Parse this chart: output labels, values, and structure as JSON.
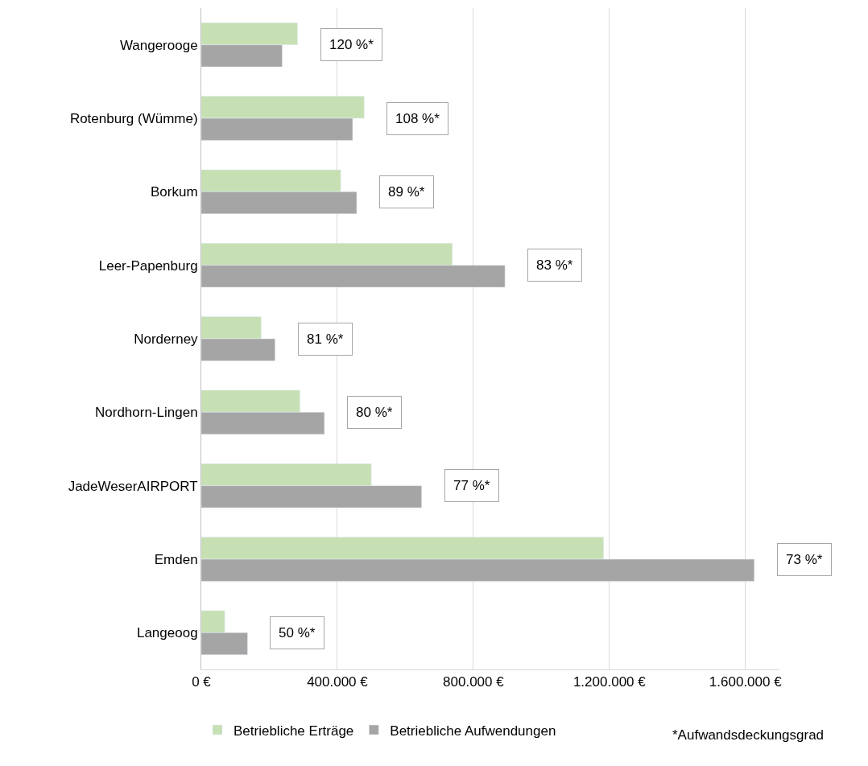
{
  "chart_data": {
    "type": "bar",
    "orientation": "horizontal",
    "categories": [
      "Wangerooge",
      "Rotenburg (Wümme)",
      "Borkum",
      "Leer-Papenburg",
      "Norderney",
      "Nordhorn-Lingen",
      "JadeWeserAIRPORT",
      "Emden",
      "Langeoog"
    ],
    "series": [
      {
        "name": "Betriebliche Erträge",
        "color": "#c6e0b4",
        "values": [
          283000,
          479000,
          410000,
          738000,
          176000,
          290000,
          500000,
          1183000,
          69000
        ]
      },
      {
        "name": "Betriebliche Aufwendungen",
        "color": "#a5a5a5",
        "values": [
          238000,
          445000,
          457000,
          893000,
          217000,
          362000,
          648000,
          1626000,
          136000
        ]
      }
    ],
    "xlim": [
      0,
      1700000
    ],
    "xticks": [
      {
        "value": 0,
        "label": "0 €"
      },
      {
        "value": 400000,
        "label": "400.000 €"
      },
      {
        "value": 800000,
        "label": "800.000 €"
      },
      {
        "value": 1200000,
        "label": "1.200.000 €"
      },
      {
        "value": 1600000,
        "label": "1.600.000 €"
      }
    ],
    "grid": "x",
    "legend": "bottom",
    "annotations": [
      "120 %*",
      "108 %*",
      "89 %*",
      "83 %*",
      "81 %*",
      "80 %*",
      "77 %*",
      "73 %*",
      "50 %*",
      "*Aufwandsdeckungsgrad"
    ]
  }
}
